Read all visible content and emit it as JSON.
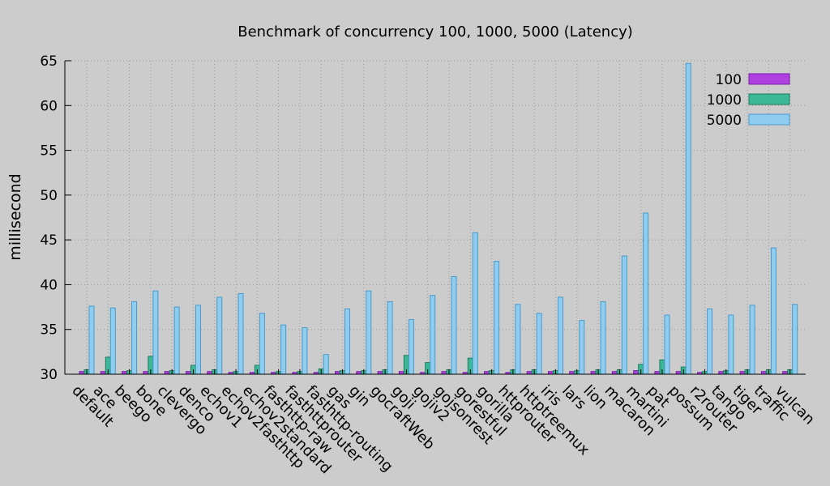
{
  "chart_data": {
    "type": "bar",
    "title": "Benchmark of concurrency 100, 1000, 5000 (Latency)",
    "xlabel": "",
    "ylabel": "millisecond",
    "ylim": [
      30,
      65
    ],
    "yticks": [
      30,
      35,
      40,
      45,
      50,
      55,
      60,
      65
    ],
    "grid": true,
    "legend_position": "top-right",
    "categories": [
      "default",
      "ace",
      "beego",
      "bone",
      "clevergo",
      "denco",
      "echov1",
      "echov2fasthttp",
      "echov2standard",
      "fasthttp-raw",
      "fasthttprouter",
      "fasthttp-routing",
      "gas",
      "gin",
      "gocraftWeb",
      "goji",
      "gojiv2",
      "gojsonrest",
      "gorestful",
      "gorilla",
      "httprouter",
      "httptreemux",
      "iris",
      "lars",
      "lion",
      "macaron",
      "martini",
      "pat",
      "possum",
      "r2router",
      "tango",
      "tiger",
      "traffic",
      "vulcan"
    ],
    "series": [
      {
        "name": "100",
        "color": "#b040e0",
        "border": "#7a1fa8",
        "values": [
          30.3,
          30.3,
          30.3,
          30.3,
          30.3,
          30.3,
          30.3,
          30.2,
          30.2,
          30.2,
          30.2,
          30.2,
          30.3,
          30.3,
          30.3,
          30.3,
          30.2,
          30.3,
          30.2,
          30.3,
          30.2,
          30.3,
          30.3,
          30.3,
          30.3,
          30.3,
          30.4,
          30.3,
          30.3,
          30.2,
          30.3,
          30.3,
          30.3,
          30.3
        ]
      },
      {
        "name": "1000",
        "color": "#3cb897",
        "border": "#1e7a60",
        "values": [
          30.5,
          31.9,
          30.4,
          32.0,
          30.4,
          31.0,
          30.5,
          30.3,
          31.0,
          30.3,
          30.3,
          30.6,
          30.4,
          30.4,
          30.5,
          32.1,
          31.3,
          30.5,
          31.8,
          30.4,
          30.5,
          30.5,
          30.4,
          30.4,
          30.5,
          30.5,
          31.1,
          31.6,
          30.8,
          30.3,
          30.4,
          30.5,
          30.5,
          30.5
        ]
      },
      {
        "name": "5000",
        "color": "#8fcdf0",
        "border": "#4a9acb",
        "values": [
          37.6,
          37.4,
          38.1,
          39.3,
          37.5,
          37.7,
          38.6,
          39.0,
          36.8,
          35.5,
          35.2,
          32.2,
          37.3,
          39.3,
          38.1,
          36.1,
          38.8,
          40.9,
          45.8,
          42.6,
          37.8,
          36.8,
          38.6,
          36.0,
          38.1,
          43.2,
          48.0,
          36.6,
          64.7,
          37.3,
          36.6,
          37.7,
          44.1,
          37.8
        ]
      }
    ]
  }
}
